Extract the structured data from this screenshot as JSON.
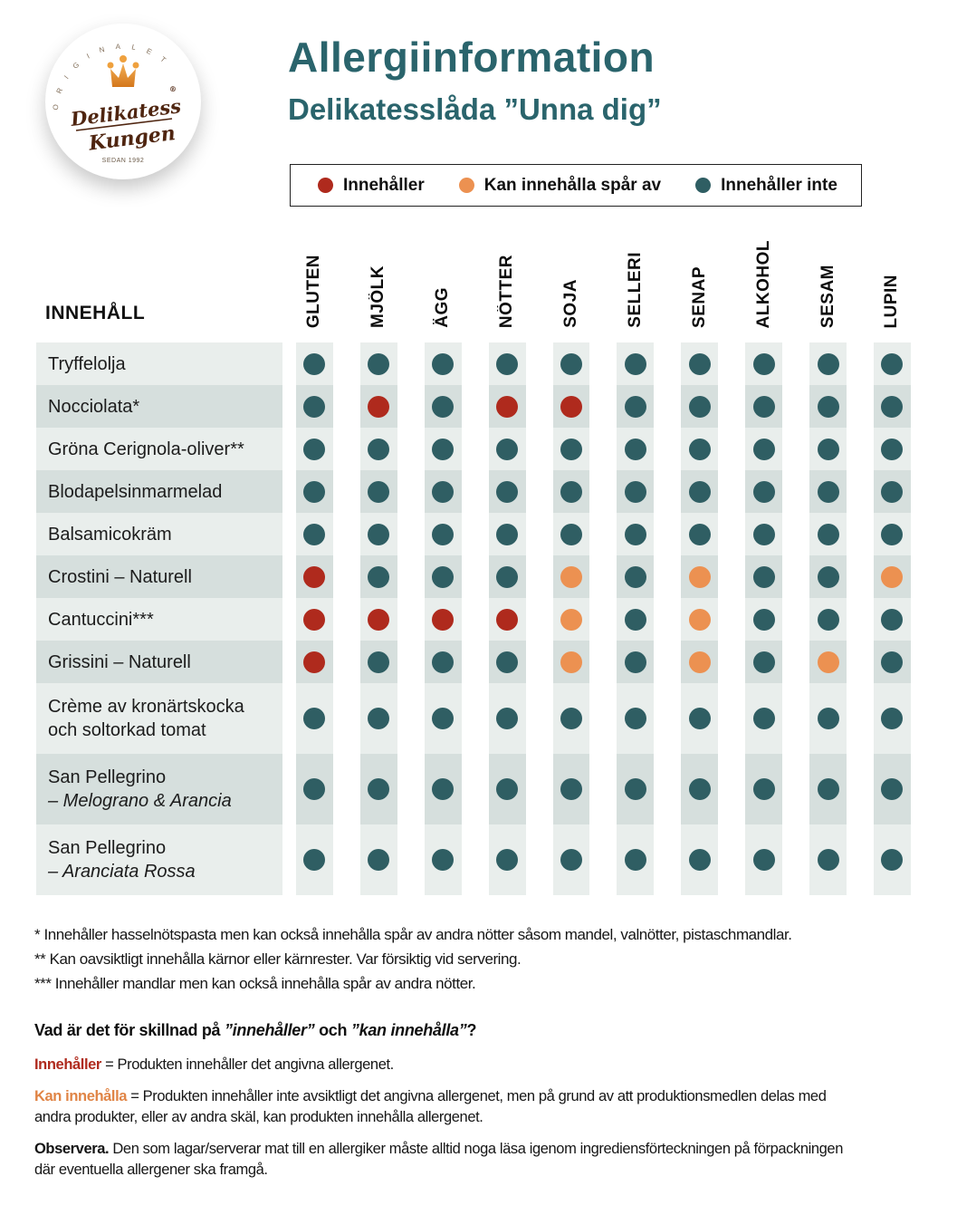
{
  "logo": {
    "arc_text": "ORIGINALET",
    "brand_line1": "Delikatess",
    "brand_line2": "Kungen",
    "registered": "®",
    "since": "SEDAN 1992"
  },
  "header": {
    "title": "Allergiinformation",
    "subtitle": "Delikatesslåda ”Unna dig”"
  },
  "colors": {
    "contains": "#AF2A1D",
    "traces": "#EC9151",
    "none": "#2F5E63",
    "accent_teal": "#2A646C",
    "row_light": "#E9EEEC",
    "row_dark": "#D6DFDD"
  },
  "legend": {
    "items": [
      {
        "key": "contains",
        "label": "Innehåller",
        "icon": "contains-dot-icon"
      },
      {
        "key": "traces",
        "label": "Kan innehålla spår av",
        "icon": "traces-dot-icon"
      },
      {
        "key": "none",
        "label": "Innehåller inte",
        "icon": "not-contains-dot-icon"
      }
    ]
  },
  "table": {
    "row_header": "INNEHÅLL",
    "columns": [
      "GLUTEN",
      "MJÖLK",
      "ÄGG",
      "NÖTTER",
      "SOJA",
      "SELLERI",
      "SENAP",
      "ALKOHOL",
      "SESAM",
      "LUPIN"
    ],
    "rows": [
      {
        "lines": [
          "Tryffelolja"
        ],
        "line2_italic": false,
        "cells": [
          "none",
          "none",
          "none",
          "none",
          "none",
          "none",
          "none",
          "none",
          "none",
          "none"
        ]
      },
      {
        "lines": [
          "Nocciolata*"
        ],
        "line2_italic": false,
        "cells": [
          "none",
          "contains",
          "none",
          "contains",
          "contains",
          "none",
          "none",
          "none",
          "none",
          "none"
        ]
      },
      {
        "lines": [
          "Gröna Cerignola-oliver**"
        ],
        "line2_italic": false,
        "cells": [
          "none",
          "none",
          "none",
          "none",
          "none",
          "none",
          "none",
          "none",
          "none",
          "none"
        ]
      },
      {
        "lines": [
          "Blodapelsinmarmelad"
        ],
        "line2_italic": false,
        "cells": [
          "none",
          "none",
          "none",
          "none",
          "none",
          "none",
          "none",
          "none",
          "none",
          "none"
        ]
      },
      {
        "lines": [
          "Balsamicokräm"
        ],
        "line2_italic": false,
        "cells": [
          "none",
          "none",
          "none",
          "none",
          "none",
          "none",
          "none",
          "none",
          "none",
          "none"
        ]
      },
      {
        "lines": [
          "Crostini – Naturell"
        ],
        "line2_italic": false,
        "cells": [
          "contains",
          "none",
          "none",
          "none",
          "traces",
          "none",
          "traces",
          "none",
          "none",
          "traces"
        ]
      },
      {
        "lines": [
          "Cantuccini***"
        ],
        "line2_italic": false,
        "cells": [
          "contains",
          "contains",
          "contains",
          "contains",
          "traces",
          "none",
          "traces",
          "none",
          "none",
          "none"
        ]
      },
      {
        "lines": [
          "Grissini – Naturell"
        ],
        "line2_italic": false,
        "cells": [
          "contains",
          "none",
          "none",
          "none",
          "traces",
          "none",
          "traces",
          "none",
          "traces",
          "none"
        ]
      },
      {
        "lines": [
          "Crème av kronärtskocka",
          "och soltorkad tomat"
        ],
        "line2_italic": false,
        "cells": [
          "none",
          "none",
          "none",
          "none",
          "none",
          "none",
          "none",
          "none",
          "none",
          "none"
        ]
      },
      {
        "lines": [
          "San Pellegrino",
          "– Melograno & Arancia"
        ],
        "line2_italic": true,
        "cells": [
          "none",
          "none",
          "none",
          "none",
          "none",
          "none",
          "none",
          "none",
          "none",
          "none"
        ]
      },
      {
        "lines": [
          "San Pellegrino",
          "– Aranciata Rossa"
        ],
        "line2_italic": true,
        "cells": [
          "none",
          "none",
          "none",
          "none",
          "none",
          "none",
          "none",
          "none",
          "none",
          "none"
        ]
      }
    ]
  },
  "footnotes": [
    "* Innehåller hasselnötspasta men kan också innehålla spår av andra nötter såsom mandel, valnötter, pistaschmandlar.",
    "** Kan oavsiktligt innehålla kärnor eller kärnrester. Var försiktig vid servering.",
    "*** Innehåller mandlar men kan också innehålla spår av andra nötter."
  ],
  "question": {
    "prefix": "Vad är det för skillnad på ",
    "word1": "”innehåller”",
    "mid": " och ",
    "word2": "”kan innehålla”",
    "suffix": "?"
  },
  "definitions": {
    "contains": {
      "term": "Innehåller",
      "text": " = Produkten innehåller det angivna allergenet."
    },
    "traces": {
      "term": "Kan innehålla",
      "text": " = Produkten innehåller inte avsiktligt det angivna allergenet, men på grund av att produktionsmedlen delas med andra produkter, eller av andra skäl, kan produkten innehålla allergenet."
    },
    "note": {
      "term": "Observera.",
      "text": " Den som lagar/serverar mat till en allergiker måste alltid noga läsa igenom ingrediensförteckningen på förpackningen där eventuella allergener ska framgå."
    }
  }
}
